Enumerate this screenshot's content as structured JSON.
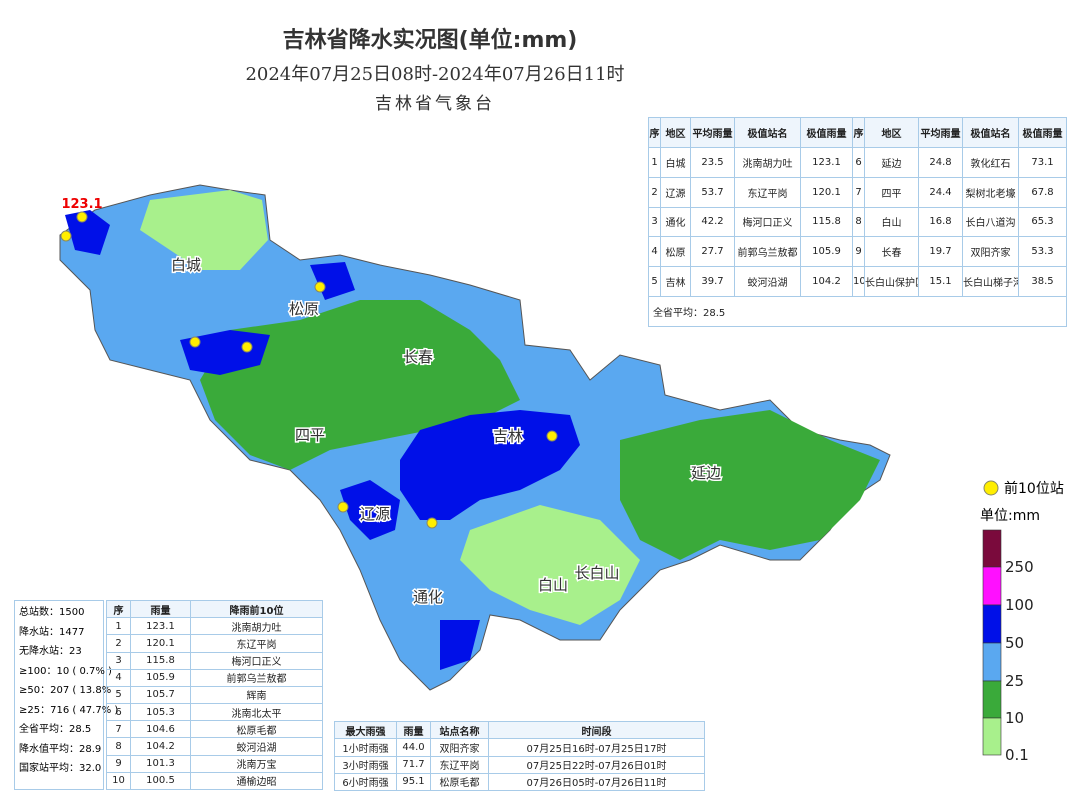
{
  "header": {
    "title": "吉林省降水实况图(单位:mm)",
    "subtitle": "2024年07月25日08时-2024年07月26日11时",
    "agency": "吉林省气象台"
  },
  "region_table": {
    "headers": [
      "序",
      "地区",
      "平均雨量",
      "极值站名",
      "极值雨量",
      "序",
      "地区",
      "平均雨量",
      "极值站名",
      "极值雨量"
    ],
    "rows": [
      [
        "1",
        "白城",
        "23.5",
        "洮南胡力吐",
        "123.1",
        "6",
        "延边",
        "24.8",
        "敦化红石",
        "73.1"
      ],
      [
        "2",
        "辽源",
        "53.7",
        "东辽平岗",
        "120.1",
        "7",
        "四平",
        "24.4",
        "梨树北老壕",
        "67.8"
      ],
      [
        "3",
        "通化",
        "42.2",
        "梅河口正义",
        "115.8",
        "8",
        "白山",
        "16.8",
        "长白八道沟",
        "65.3"
      ],
      [
        "4",
        "松原",
        "27.7",
        "前郭乌兰敖都",
        "105.9",
        "9",
        "长春",
        "19.7",
        "双阳齐家",
        "53.3"
      ],
      [
        "5",
        "吉林",
        "39.7",
        "蛟河沿湖",
        "104.2",
        "10",
        "长白山保护区",
        "15.1",
        "长白山梯子河",
        "38.5"
      ]
    ],
    "footer": "全省平均：28.5"
  },
  "stats": {
    "lines": [
      "总站数：1500",
      "降水站：1477",
      "无降水站：23",
      "≥100：10 ( 0.7% )",
      "≥50：207 ( 13.8%",
      "≥25：716 ( 47.7% )",
      "全省平均：28.5",
      "降水值平均：28.9",
      "国家站平均：32.0"
    ]
  },
  "top10": {
    "headers": [
      "序",
      "雨量",
      "降雨前10位"
    ],
    "rows": [
      [
        "1",
        "123.1",
        "洮南胡力吐"
      ],
      [
        "2",
        "120.1",
        "东辽平岗"
      ],
      [
        "3",
        "115.8",
        "梅河口正义"
      ],
      [
        "4",
        "105.9",
        "前郭乌兰敖都"
      ],
      [
        "5",
        "105.7",
        "辉南"
      ],
      [
        "6",
        "105.3",
        "洮南北太平"
      ],
      [
        "7",
        "104.6",
        "松原毛都"
      ],
      [
        "8",
        "104.2",
        "蛟河沿湖"
      ],
      [
        "9",
        "101.3",
        "洮南万宝"
      ],
      [
        "10",
        "100.5",
        "通榆边昭"
      ]
    ]
  },
  "intensity": {
    "headers": [
      "最大雨强",
      "雨量",
      "站点名称",
      "时间段"
    ],
    "rows": [
      [
        "1小时雨强",
        "44.0",
        "双阳齐家",
        "07月25日16时-07月25日17时"
      ],
      [
        "3小时雨强",
        "71.7",
        "东辽平岗",
        "07月25日22时-07月26日01时"
      ],
      [
        "6小时雨强",
        "95.1",
        "松原毛都",
        "07月26日05时-07月26日11时"
      ]
    ]
  },
  "legend": {
    "top10_label": "前10位站",
    "unit": "单位:mm",
    "levels": [
      {
        "label": "250",
        "color": "#7a0a3c"
      },
      {
        "label": "100",
        "color": "#ff10ff"
      },
      {
        "label": "50",
        "color": "#0010e8"
      },
      {
        "label": "25",
        "color": "#5aa8f0"
      },
      {
        "label": "10",
        "color": "#3aaa3a"
      },
      {
        "label": "0.1",
        "color": "#a8f08c"
      }
    ]
  },
  "map": {
    "peak_label": "123.1",
    "labels": [
      "白城",
      "松原",
      "长春",
      "四平",
      "吉林",
      "辽源",
      "通化",
      "白山",
      "长白山",
      "延边"
    ]
  }
}
